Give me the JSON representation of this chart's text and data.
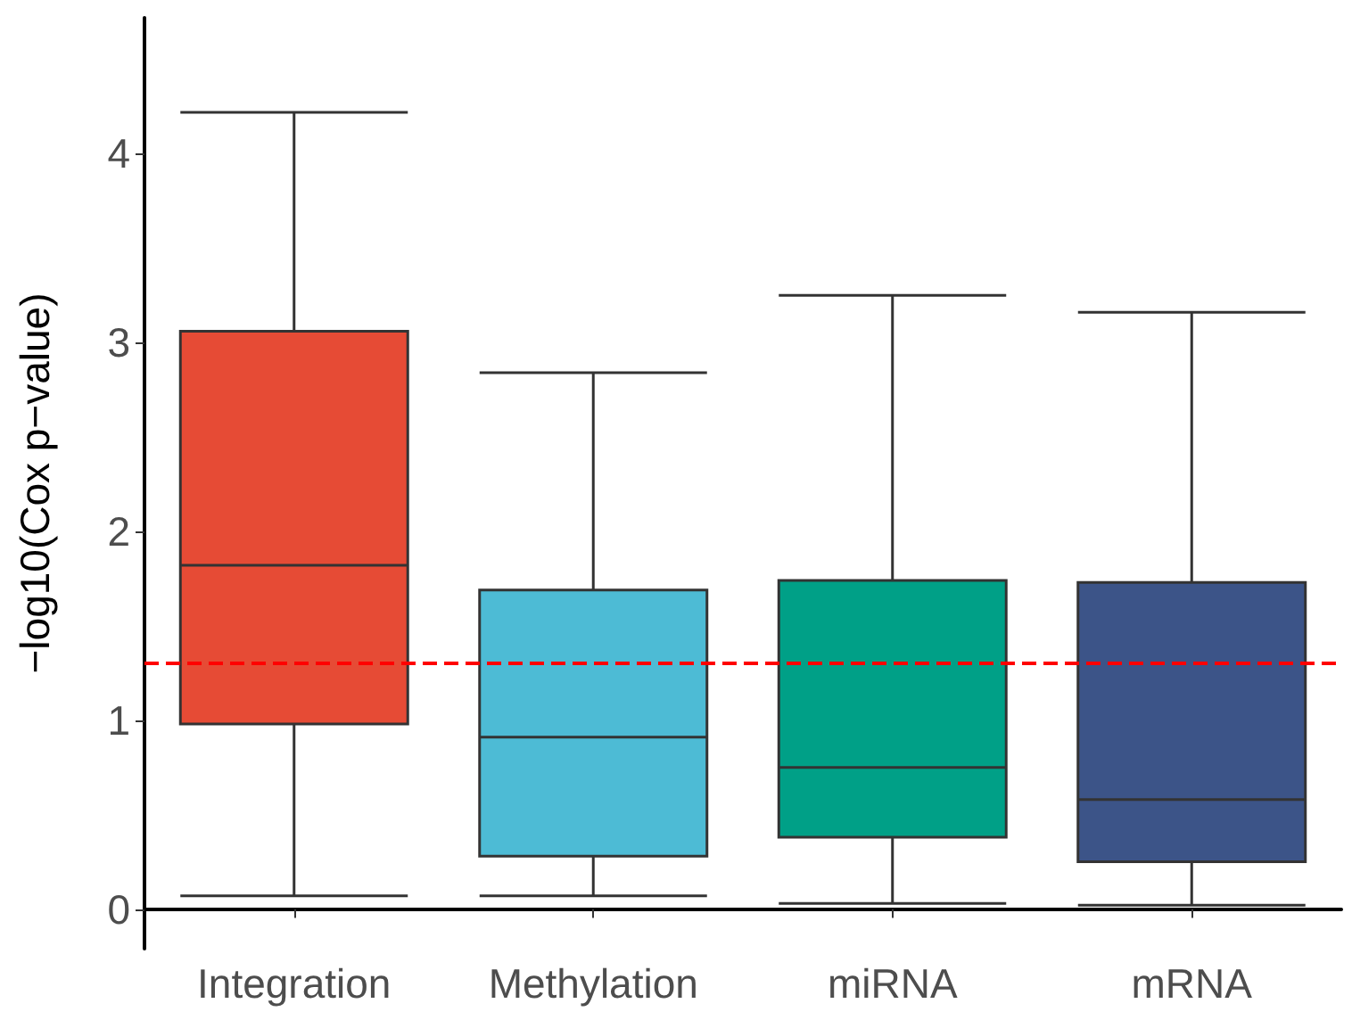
{
  "chart_data": {
    "type": "box",
    "ylabel": "−log10(Cox p−value)",
    "categories": [
      "Integration",
      "Methylation",
      "miRNA",
      "mRNA"
    ],
    "colors": [
      "#e64b35",
      "#4dbbd5",
      "#00a087",
      "#3c5488"
    ],
    "boxes": [
      {
        "low": 0.07,
        "q1": 0.98,
        "median": 1.82,
        "q3": 3.06,
        "high": 4.22
      },
      {
        "low": 0.07,
        "q1": 0.28,
        "median": 0.91,
        "q3": 1.69,
        "high": 2.84
      },
      {
        "low": 0.03,
        "q1": 0.38,
        "median": 0.75,
        "q3": 1.74,
        "high": 3.25
      },
      {
        "low": 0.02,
        "q1": 0.25,
        "median": 0.58,
        "q3": 1.73,
        "high": 3.16
      }
    ],
    "ylim": [
      -0.21,
      4.72
    ],
    "yticks": [
      0,
      1,
      2,
      3,
      4
    ],
    "ref_lines": [
      {
        "axis": "y",
        "value": 1.3,
        "color": "#ff0000",
        "line_style": "dashed"
      }
    ],
    "grid": false,
    "legend": false
  }
}
